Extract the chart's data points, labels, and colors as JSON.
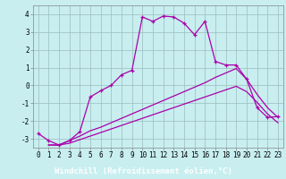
{
  "xlabel": "Windchill (Refroidissement éolien,°C)",
  "bg_color": "#c8eef0",
  "line_color": "#aa00aa",
  "grid_color": "#9bbcbe",
  "xlabel_bg": "#6600aa",
  "xlabel_fg": "#ffffff",
  "xlim": [
    -0.5,
    23.5
  ],
  "ylim": [
    -3.5,
    4.5
  ],
  "xticks": [
    0,
    1,
    2,
    3,
    4,
    5,
    6,
    7,
    8,
    9,
    10,
    11,
    12,
    13,
    14,
    15,
    16,
    17,
    18,
    19,
    20,
    21,
    22,
    23
  ],
  "yticks": [
    -3,
    -2,
    -1,
    0,
    1,
    2,
    3,
    4
  ],
  "line1_x": [
    0,
    1,
    2,
    3,
    4,
    5,
    6,
    7,
    8,
    9,
    10,
    11,
    12,
    13,
    14,
    15,
    16,
    17,
    18,
    19,
    20,
    21,
    22,
    23
  ],
  "line1_y": [
    -2.7,
    -3.1,
    -3.35,
    -3.1,
    -2.6,
    -0.65,
    -0.3,
    0.0,
    0.6,
    0.85,
    3.85,
    3.6,
    3.9,
    3.85,
    3.5,
    2.85,
    3.6,
    1.35,
    1.15,
    1.15,
    0.35,
    -1.25,
    -1.8,
    -1.75
  ],
  "line2_x": [
    1,
    2,
    3,
    4,
    5,
    6,
    7,
    8,
    9,
    10,
    11,
    12,
    13,
    14,
    15,
    16,
    17,
    18,
    19,
    20,
    21,
    22,
    23
  ],
  "line2_y": [
    -3.35,
    -3.35,
    -3.1,
    -2.85,
    -2.55,
    -2.35,
    -2.1,
    -1.85,
    -1.6,
    -1.35,
    -1.1,
    -0.85,
    -0.6,
    -0.35,
    -0.1,
    0.15,
    0.45,
    0.7,
    0.95,
    0.35,
    -0.5,
    -1.25,
    -1.8
  ],
  "line3_x": [
    1,
    2,
    3,
    4,
    5,
    6,
    7,
    8,
    9,
    10,
    11,
    12,
    13,
    14,
    15,
    16,
    17,
    18,
    19,
    20,
    21,
    22,
    23
  ],
  "line3_y": [
    -3.35,
    -3.35,
    -3.25,
    -3.05,
    -2.85,
    -2.65,
    -2.45,
    -2.25,
    -2.05,
    -1.85,
    -1.65,
    -1.45,
    -1.25,
    -1.05,
    -0.85,
    -0.65,
    -0.45,
    -0.25,
    -0.05,
    -0.35,
    -0.95,
    -1.6,
    -2.1
  ],
  "tick_fontsize": 5.5,
  "xlabel_fontsize": 6.5
}
